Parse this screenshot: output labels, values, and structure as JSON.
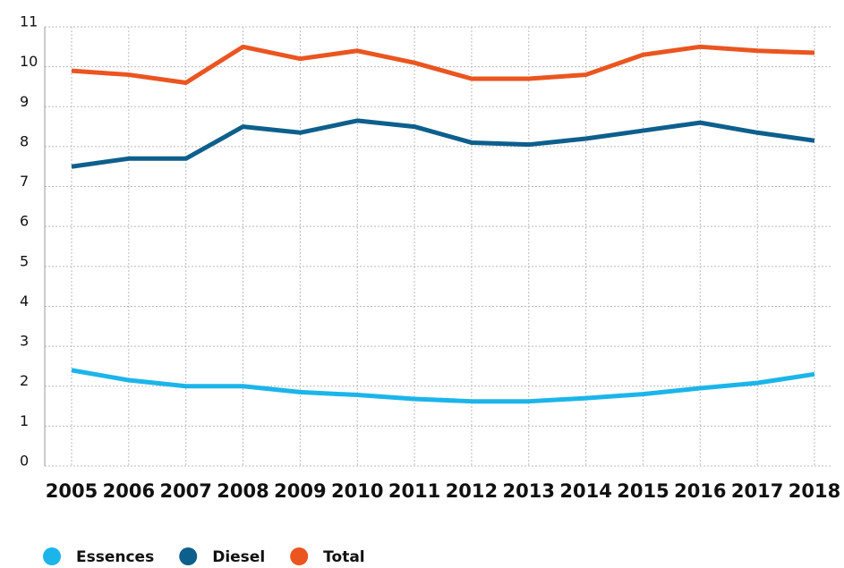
{
  "chart_data": {
    "type": "line",
    "categories": [
      "2005",
      "2006",
      "2007",
      "2008",
      "2009",
      "2010",
      "2011",
      "2012",
      "2013",
      "2014",
      "2015",
      "2016",
      "2017",
      "2018"
    ],
    "series": [
      {
        "name": "Essences",
        "color": "#1bb5ea",
        "values": [
          2.4,
          2.15,
          2.0,
          2.0,
          1.85,
          1.78,
          1.68,
          1.62,
          1.62,
          1.7,
          1.8,
          1.95,
          2.08,
          2.3
        ]
      },
      {
        "name": "Diesel",
        "color": "#0d5f8c",
        "values": [
          7.5,
          7.7,
          7.7,
          8.5,
          8.35,
          8.65,
          8.5,
          8.1,
          8.05,
          8.2,
          8.4,
          8.6,
          8.35,
          8.15
        ]
      },
      {
        "name": "Total",
        "color": "#ea5520",
        "values": [
          9.9,
          9.8,
          9.6,
          10.5,
          10.2,
          10.4,
          10.1,
          9.7,
          9.7,
          9.8,
          10.3,
          10.5,
          10.4,
          10.35
        ]
      }
    ],
    "ylim": [
      0,
      11
    ],
    "yticks": [
      0,
      1,
      2,
      3,
      4,
      5,
      6,
      7,
      8,
      9,
      10,
      11
    ],
    "grid": true,
    "legend": "bottom"
  }
}
